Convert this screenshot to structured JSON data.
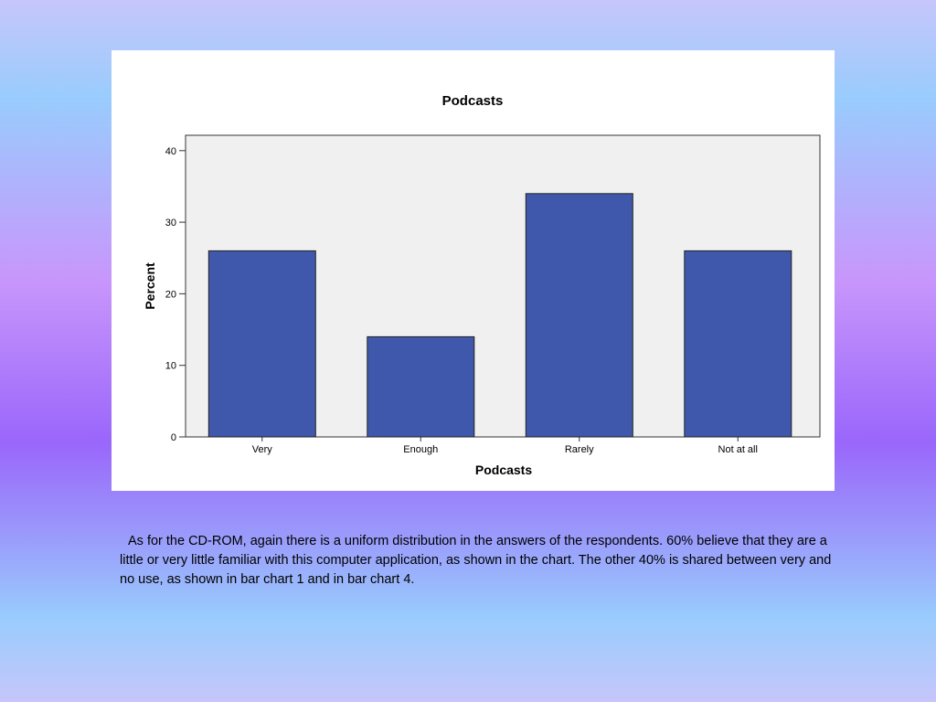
{
  "chart_data": {
    "type": "bar",
    "title": "Podcasts",
    "xlabel": "Podcasts",
    "ylabel": "Percent",
    "categories": [
      "Very",
      "Enough",
      "Rarely",
      "Not at all"
    ],
    "values": [
      26,
      14,
      34,
      26
    ],
    "ylim": [
      0,
      42
    ],
    "yticks": [
      0,
      10,
      20,
      30,
      40
    ],
    "bar_color": "#3f58ab",
    "plot_background": "#f0f0f0",
    "grid": false,
    "legend": "none"
  },
  "caption": {
    "text": "As for the CD-ROM, again there is a uniform distribution in the answers of the respondents. 60% believe that they are a little or very little familiar with this computer application, as shown in the chart. The other 40% is shared between very and no use, as shown in bar chart 1 and in bar chart 4."
  }
}
